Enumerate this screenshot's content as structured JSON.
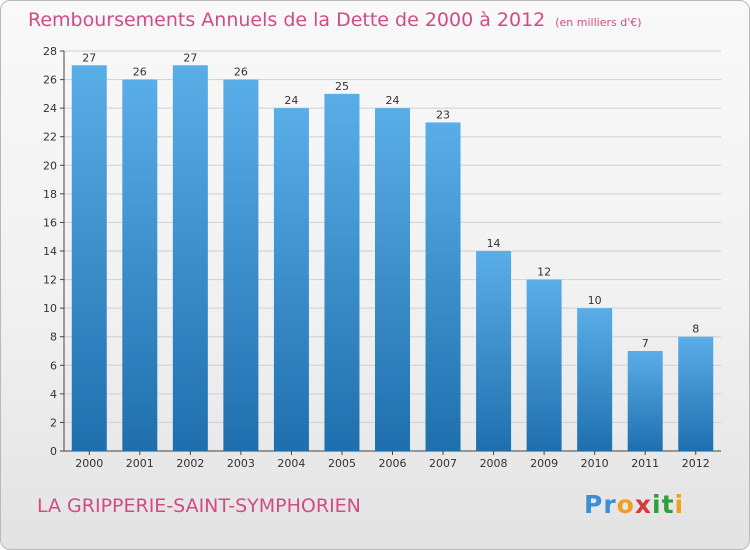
{
  "title": "Remboursements Annuels de la Dette de 2000 à 2012",
  "unit": "(en milliers d'€)",
  "place": "LA GRIPPERIE-SAINT-SYMPHORIEN",
  "logo": {
    "letters": [
      "P",
      "r",
      "o",
      "x",
      "i",
      "t",
      "i"
    ],
    "colors": [
      "#3a8fd6",
      "#3a8fd6",
      "#f0a020",
      "#d83a3a",
      "#2e9e3e",
      "#2e9e3e",
      "#f0a020"
    ]
  },
  "colors": {
    "title": "#d24b84",
    "bar_top": "#5aaee8",
    "bar_bottom": "#1f6fae",
    "grid": "#cfcfcf"
  },
  "chart_data": {
    "type": "bar",
    "categories": [
      "2000",
      "2001",
      "2002",
      "2003",
      "2004",
      "2005",
      "2006",
      "2007",
      "2008",
      "2009",
      "2010",
      "2011",
      "2012"
    ],
    "values": [
      27,
      26,
      27,
      26,
      24,
      25,
      24,
      23,
      14,
      12,
      10,
      7,
      8
    ],
    "title": "Remboursements Annuels de la Dette de 2000 à 2012",
    "xlabel": "",
    "ylabel": "",
    "ylim": [
      0,
      28
    ],
    "yticks": [
      0,
      2,
      4,
      6,
      8,
      10,
      12,
      14,
      16,
      18,
      20,
      22,
      24,
      26,
      28
    ],
    "grid": true,
    "data_labels": true
  }
}
